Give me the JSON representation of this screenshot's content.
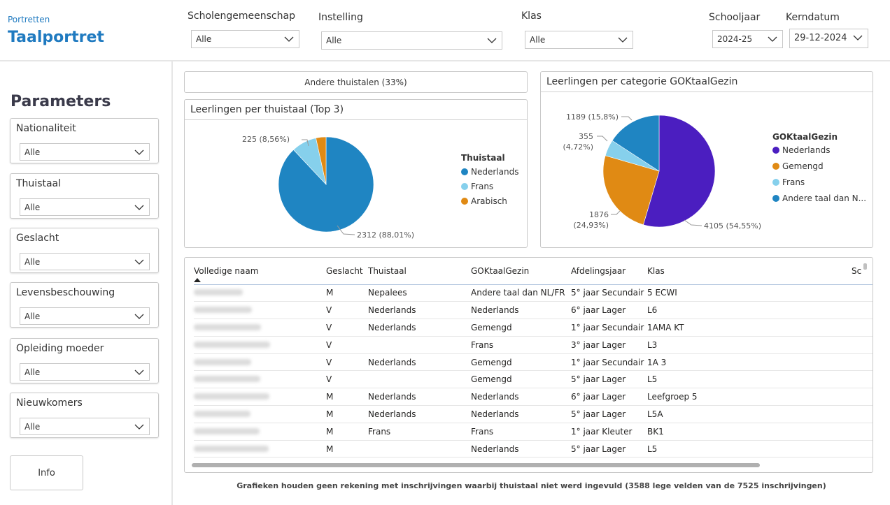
{
  "header": {
    "breadcrumb": "Portretten",
    "title": "Taalportret",
    "filters": [
      {
        "label": "Scholengemeenschap",
        "value": "Alle"
      },
      {
        "label": "Instelling",
        "value": "Alle"
      },
      {
        "label": "Klas",
        "value": "Alle"
      },
      {
        "label": "Schooljaar",
        "value": "2024-25"
      },
      {
        "label": "Kerndatum",
        "value": "29-12-2024"
      }
    ]
  },
  "sidebar": {
    "title": "Parameters",
    "slicers": [
      {
        "label": "Nationaliteit",
        "value": "Alle"
      },
      {
        "label": "Thuistaal",
        "value": "Alle"
      },
      {
        "label": "Geslacht",
        "value": "Alle"
      },
      {
        "label": "Levensbeschouwing",
        "value": "Alle"
      },
      {
        "label": "Opleiding moeder",
        "value": "Alle"
      },
      {
        "label": "Nieuwkomers",
        "value": "Alle"
      }
    ],
    "info_button": "Info"
  },
  "kpi": {
    "text": "Andere thuistalen (33%)"
  },
  "chart_data": [
    {
      "type": "pie",
      "title": "Leerlingen per thuistaal (Top 3)",
      "legend_title": "Thuistaal",
      "legend_position": "right",
      "categories": [
        "Nederlands",
        "Frans",
        "Arabisch"
      ],
      "values": [
        2312,
        225,
        90
      ],
      "colors": [
        "#1f85c2",
        "#86d0ec",
        "#e08a14"
      ],
      "labels": [
        "2312 (88,01%)",
        "225 (8,56%)",
        ""
      ]
    },
    {
      "type": "pie",
      "title": "Leerlingen per categorie GOKtaalGezin",
      "legend_title": "GOKtaalGezin",
      "legend_position": "right",
      "categories": [
        "Nederlands",
        "Gemengd",
        "Frans",
        "Andere taal dan N..."
      ],
      "values": [
        4105,
        1876,
        355,
        1189
      ],
      "colors": [
        "#4b1ec0",
        "#e08a14",
        "#86d0ec",
        "#1f85c2"
      ],
      "labels": [
        "4105 (54,55%)",
        "1876\n(24,93%)",
        "355\n(4,72%)",
        "1189 (15,8%)"
      ]
    }
  ],
  "table": {
    "columns": [
      "Volledige naam",
      "Geslacht",
      "Thuistaal",
      "GOKtaalGezin",
      "Afdelingsjaar",
      "Klas",
      "Sc"
    ],
    "rows": [
      [
        "",
        "M",
        "Nepalees",
        "Andere taal dan NL/FR",
        "5° jaar Secundair",
        "5 ECWI"
      ],
      [
        "",
        "V",
        "Nederlands",
        "Nederlands",
        "6° jaar Lager",
        "L6"
      ],
      [
        "",
        "V",
        "Nederlands",
        "Gemengd",
        "1° jaar Secundair",
        "1AMA KT"
      ],
      [
        "",
        "V",
        "",
        "Frans",
        "3° jaar Lager",
        "L3"
      ],
      [
        "",
        "V",
        "Nederlands",
        "Gemengd",
        "1° jaar Secundair",
        "1A 3"
      ],
      [
        "",
        "V",
        "",
        "Gemengd",
        "5° jaar Lager",
        "L5"
      ],
      [
        "",
        "M",
        "Nederlands",
        "Nederlands",
        "6° jaar Lager",
        "Leefgroep 5"
      ],
      [
        "",
        "M",
        "Nederlands",
        "Nederlands",
        "5° jaar Lager",
        "L5A"
      ],
      [
        "",
        "M",
        "Frans",
        "Frans",
        "1° jaar Kleuter",
        "BK1"
      ],
      [
        "",
        "M",
        "",
        "Nederlands",
        "5° jaar Lager",
        "L5"
      ]
    ]
  },
  "footer": "Grafieken houden geen rekening met inschrijvingen waarbij thuistaal niet werd ingevuld (3588 lege velden van de 7525 inschrijvingen)"
}
